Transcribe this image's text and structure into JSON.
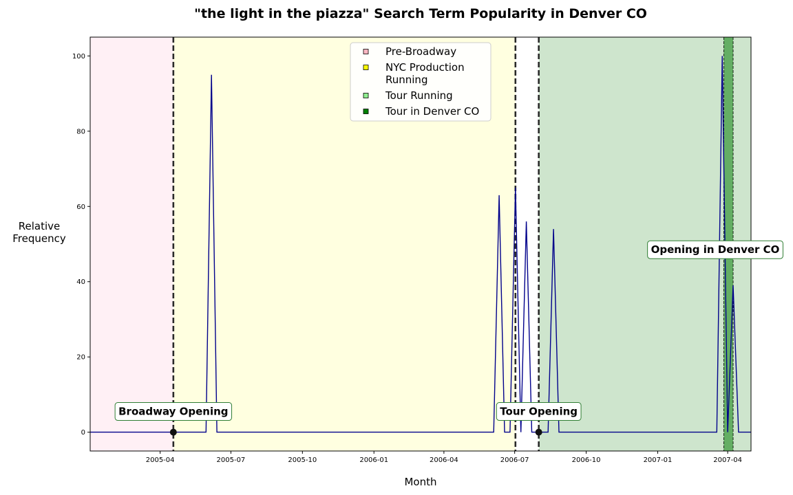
{
  "chart_data": {
    "type": "line",
    "title": "\"the light in the piazza\" Search Term Popularity in Denver CO",
    "xlabel": "Month",
    "ylabel": "Relative\nFrequency",
    "x_axis_type": "date",
    "xlim": [
      "2005-01-01",
      "2007-05-01"
    ],
    "ylim": [
      -5,
      105
    ],
    "x_ticks": [
      "2005-04",
      "2005-07",
      "2005-10",
      "2006-01",
      "2006-04",
      "2006-07",
      "2006-10",
      "2007-01",
      "2007-04"
    ],
    "y_ticks": [
      0,
      20,
      40,
      60,
      80,
      100
    ],
    "grid": false,
    "line_color": "#00008b",
    "series": [
      {
        "dates": [
          "2005-01-01",
          "2005-04-18",
          "2005-05-23",
          "2005-05-30",
          "2005-06-06",
          "2005-06-13",
          "2005-06-20",
          "2006-05-28",
          "2006-06-04",
          "2006-06-11",
          "2006-06-18",
          "2006-06-25",
          "2006-07-02",
          "2006-07-09",
          "2006-07-16",
          "2006-07-23",
          "2006-07-30",
          "2006-08-06",
          "2006-08-13",
          "2006-08-20",
          "2006-08-27",
          "2006-09-03",
          "2007-03-11",
          "2007-03-18",
          "2007-03-25",
          "2007-04-01",
          "2007-04-08",
          "2007-04-15",
          "2007-04-22",
          "2007-05-01"
        ],
        "values": [
          0,
          0,
          0,
          0,
          95,
          0,
          0,
          0,
          0,
          63,
          0,
          0,
          65,
          0,
          56,
          0,
          0,
          0,
          0,
          54,
          0,
          0,
          0,
          0,
          100,
          0,
          39,
          0,
          0,
          0
        ]
      }
    ],
    "shaded_regions": [
      {
        "label": "Pre-Broadway",
        "start": "2005-01-01",
        "end": "2005-04-18",
        "color": "#fff0f5"
      },
      {
        "label": "NYC Production Running",
        "start": "2005-04-18",
        "end": "2006-07-02",
        "color": "#ffffe0"
      },
      {
        "label": "Tour Running",
        "start": "2006-08-01",
        "end": "2007-05-01",
        "color": "#cee5cd"
      },
      {
        "label": "Tour in Denver CO",
        "start": "2007-03-27",
        "end": "2007-04-08",
        "color": "#64ae64"
      }
    ],
    "vertical_lines": [
      {
        "date": "2005-04-18",
        "style": "dashed"
      },
      {
        "date": "2006-07-02",
        "style": "dashed"
      },
      {
        "date": "2006-08-01",
        "style": "dashed"
      }
    ],
    "markers": [
      {
        "date": "2005-04-18",
        "value": 0
      },
      {
        "date": "2006-08-01",
        "value": 0
      }
    ],
    "legend": {
      "placement": "top-center",
      "entries": [
        {
          "label": "Pre-Broadway",
          "color": "#ffb6c1"
        },
        {
          "label": "NYC Production\nRunning",
          "color": "#ffff00"
        },
        {
          "label": "Tour Running",
          "color": "#90ee90"
        },
        {
          "label": "Tour in Denver CO",
          "color": "#008000"
        }
      ]
    },
    "annotations": [
      {
        "text": "Broadway Opening",
        "date": "2005-04-18",
        "value": 5.5
      },
      {
        "text": "Tour Opening",
        "date": "2006-08-01",
        "value": 5.5
      },
      {
        "text": "Opening in Denver CO",
        "date": "2007-03-16",
        "value": 48.5
      }
    ]
  }
}
